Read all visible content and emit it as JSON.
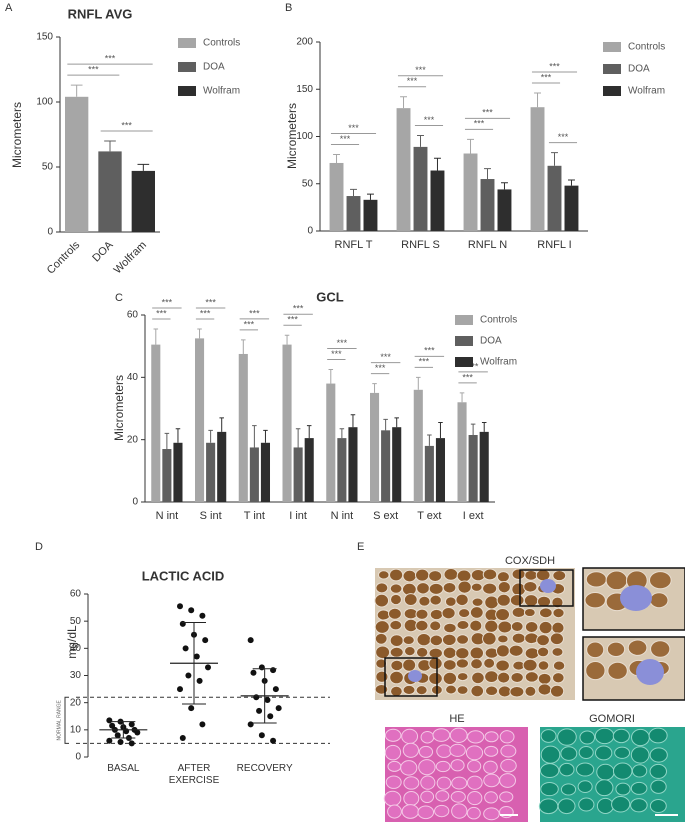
{
  "panel_labels": [
    "A",
    "B",
    "C",
    "D",
    "E"
  ],
  "chart_data": [
    {
      "type": "bar",
      "title": "RNFL AVG",
      "ylabel": "Micrometers",
      "categories": [
        "Controls",
        "DOA",
        "Wolfram"
      ],
      "values": [
        104,
        62,
        47
      ],
      "errors": [
        9,
        8,
        5
      ],
      "colors": [
        "#a6a6a6",
        "#5f5f5f",
        "#2e2e2e"
      ],
      "legend": [
        "Controls",
        "DOA",
        "Wolfram"
      ],
      "ylim": [
        0,
        150
      ],
      "yticks": [
        0,
        50,
        100,
        150
      ],
      "significance": [
        {
          "pair": [
            0,
            1
          ],
          "label": "***"
        },
        {
          "pair": [
            1,
            2
          ],
          "label": "***"
        },
        {
          "pair": [
            0,
            2
          ],
          "label": "***"
        }
      ]
    },
    {
      "type": "bar",
      "ylabel": "Micrometers",
      "categories": [
        "RNFL T",
        "RNFL S",
        "RNFL N",
        "RNFL I"
      ],
      "series": [
        {
          "name": "Controls",
          "color": "#a6a6a6",
          "values": [
            72,
            130,
            82,
            131
          ],
          "errors": [
            9,
            12,
            15,
            15
          ]
        },
        {
          "name": "DOA",
          "color": "#5f5f5f",
          "values": [
            37,
            89,
            55,
            69
          ],
          "errors": [
            7,
            12,
            11,
            14
          ]
        },
        {
          "name": "Wolfram",
          "color": "#2e2e2e",
          "values": [
            33,
            64,
            44,
            48
          ],
          "errors": [
            6,
            13,
            7,
            6
          ]
        }
      ],
      "ylim": [
        0,
        200
      ],
      "yticks": [
        0,
        50,
        100,
        150,
        200
      ],
      "significance": [
        {
          "category": 0,
          "pair": [
            0,
            1
          ],
          "label": "***"
        },
        {
          "category": 0,
          "pair": [
            0,
            2
          ],
          "label": "***"
        },
        {
          "category": 1,
          "pair": [
            0,
            1
          ],
          "label": "***"
        },
        {
          "category": 1,
          "pair": [
            1,
            2
          ],
          "label": "***"
        },
        {
          "category": 1,
          "pair": [
            0,
            2
          ],
          "label": "***"
        },
        {
          "category": 2,
          "pair": [
            0,
            1
          ],
          "label": "***"
        },
        {
          "category": 2,
          "pair": [
            0,
            2
          ],
          "label": "***"
        },
        {
          "category": 3,
          "pair": [
            0,
            1
          ],
          "label": "***"
        },
        {
          "category": 3,
          "pair": [
            1,
            2
          ],
          "label": "***"
        },
        {
          "category": 3,
          "pair": [
            0,
            2
          ],
          "label": "***"
        }
      ]
    },
    {
      "type": "bar",
      "title": "GCL",
      "ylabel": "Micrometers",
      "categories": [
        "N int",
        "S int",
        "T int",
        "I int",
        "N int",
        "S ext",
        "T ext",
        "I ext"
      ],
      "series": [
        {
          "name": "Controls",
          "color": "#a6a6a6",
          "values": [
            50.5,
            52.5,
            47.5,
            50.5,
            38,
            35,
            36,
            32
          ],
          "errors": [
            5,
            3,
            4.5,
            3,
            4.5,
            3,
            4,
            3
          ]
        },
        {
          "name": "DOA",
          "color": "#5f5f5f",
          "values": [
            17,
            19,
            17.5,
            17.5,
            20.5,
            23,
            18,
            21.5
          ],
          "errors": [
            5,
            4,
            7,
            6,
            3,
            3.5,
            3.5,
            3.5
          ]
        },
        {
          "name": "Wolfram",
          "color": "#2e2e2e",
          "values": [
            19,
            22.5,
            19,
            20.5,
            24,
            24,
            20.5,
            22.5
          ],
          "errors": [
            4.5,
            4.5,
            4,
            4,
            4,
            3,
            5,
            3
          ]
        }
      ],
      "ylim": [
        0,
        60
      ],
      "yticks": [
        0,
        20,
        40,
        60
      ],
      "significance": [
        {
          "category": 0,
          "pair": [
            0,
            1
          ],
          "label": "***"
        },
        {
          "category": 0,
          "pair": [
            0,
            2
          ],
          "label": "***"
        },
        {
          "category": 1,
          "pair": [
            0,
            1
          ],
          "label": "***"
        },
        {
          "category": 1,
          "pair": [
            0,
            2
          ],
          "label": "***"
        },
        {
          "category": 2,
          "pair": [
            0,
            1
          ],
          "label": "***"
        },
        {
          "category": 2,
          "pair": [
            0,
            2
          ],
          "label": "***"
        },
        {
          "category": 3,
          "pair": [
            0,
            1
          ],
          "label": "***"
        },
        {
          "category": 3,
          "pair": [
            0,
            2
          ],
          "label": "***"
        },
        {
          "category": 4,
          "pair": [
            0,
            1
          ],
          "label": "***"
        },
        {
          "category": 4,
          "pair": [
            0,
            2
          ],
          "label": "***"
        },
        {
          "category": 5,
          "pair": [
            0,
            1
          ],
          "label": "***"
        },
        {
          "category": 5,
          "pair": [
            0,
            2
          ],
          "label": "***"
        },
        {
          "category": 6,
          "pair": [
            0,
            1
          ],
          "label": "***"
        },
        {
          "category": 6,
          "pair": [
            0,
            2
          ],
          "label": "***"
        },
        {
          "category": 7,
          "pair": [
            0,
            1
          ],
          "label": "***"
        },
        {
          "category": 7,
          "pair": [
            0,
            2
          ],
          "label": "***"
        }
      ]
    },
    {
      "type": "scatter",
      "title": "LACTIC ACID",
      "ylabel": "mg/dL",
      "categories": [
        "BASAL",
        "AFTER EXERCISE",
        "RECOVERY"
      ],
      "groups": [
        {
          "values": [
            13.5,
            13,
            12,
            11.5,
            11,
            10,
            10,
            9.5,
            9,
            8,
            7,
            6,
            5.5,
            5
          ],
          "mean": 10,
          "sd": 3
        },
        {
          "values": [
            55.5,
            54,
            52,
            49,
            45,
            43,
            40,
            37,
            33,
            30,
            28,
            25,
            18,
            12,
            7
          ],
          "mean": 34.5,
          "sd": 15
        },
        {
          "values": [
            43,
            33,
            32,
            31,
            28,
            25,
            22,
            21,
            18,
            17,
            15,
            12,
            8,
            6
          ],
          "mean": 22.5,
          "sd": 10
        }
      ],
      "color": "#111111",
      "reference_lines": [
        22,
        5
      ],
      "reference_label": "NORMAL RANGE",
      "ylim": [
        0,
        60
      ],
      "yticks": [
        0,
        10,
        20,
        30,
        40,
        50,
        60
      ]
    }
  ],
  "images": {
    "titles": [
      "COX/SDH",
      "HE",
      "GOMORI"
    ]
  }
}
